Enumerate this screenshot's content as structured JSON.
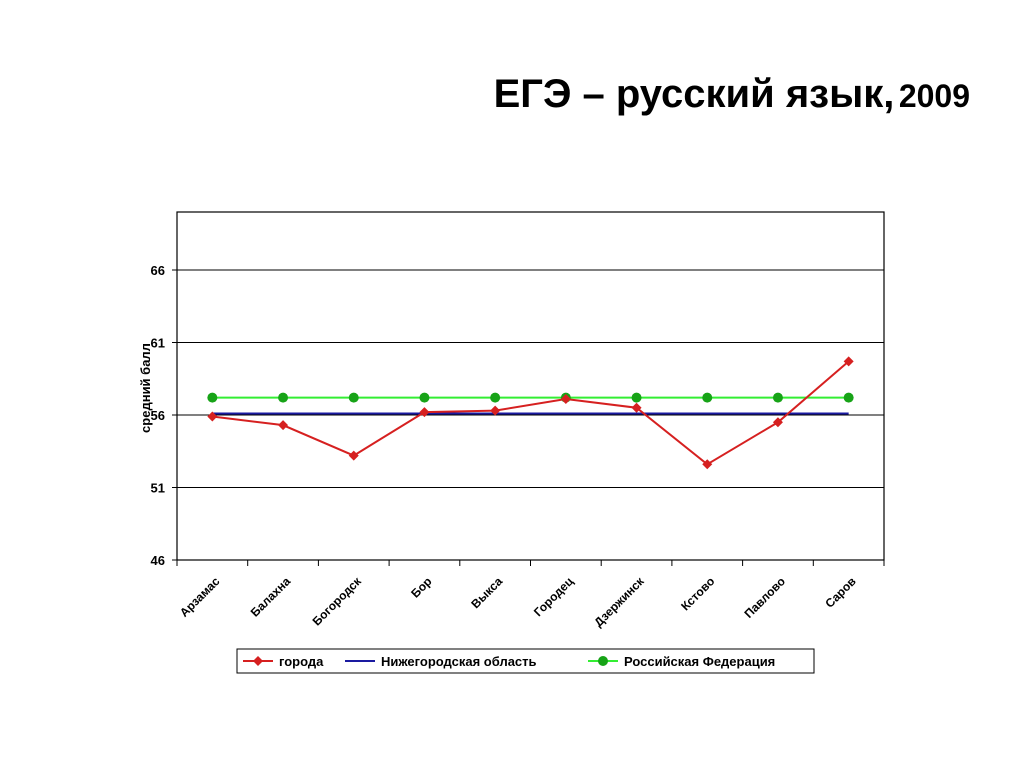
{
  "slide": {
    "title_main": "ЕГЭ – русский язык,",
    "title_year": "2009"
  },
  "chart_data": {
    "type": "line",
    "title": "",
    "xlabel": "",
    "ylabel": "средний балл",
    "ylim": [
      46,
      70
    ],
    "yticks": [
      46,
      51,
      56,
      61,
      66
    ],
    "grid": true,
    "legend_position": "bottom",
    "categories": [
      "Арзамас",
      "Балахна",
      "Богородск",
      "Бор",
      "Выкса",
      "Городец",
      "Дзержинск",
      "Кстово",
      "Павлово",
      "Саров"
    ],
    "series": [
      {
        "name": "города",
        "color": "#d62020",
        "marker": "diamond",
        "values": [
          55.9,
          55.3,
          53.2,
          56.2,
          56.3,
          57.1,
          56.5,
          52.6,
          55.5,
          59.7
        ]
      },
      {
        "name": "Нижегородская область",
        "color": "#1a1aa0",
        "marker": "none",
        "values": [
          56.1,
          56.1,
          56.1,
          56.1,
          56.1,
          56.1,
          56.1,
          56.1,
          56.1,
          56.1
        ]
      },
      {
        "name": "Российская Федерация",
        "color": "#17a317",
        "line_color": "#33ee33",
        "marker": "circle",
        "values": [
          57.2,
          57.2,
          57.2,
          57.2,
          57.2,
          57.2,
          57.2,
          57.2,
          57.2,
          57.2
        ]
      }
    ]
  }
}
